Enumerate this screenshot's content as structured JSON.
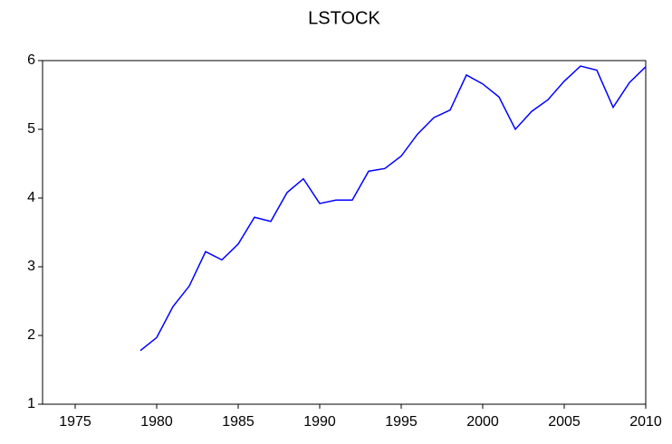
{
  "chart_data": {
    "type": "line",
    "title": "LSTOCK",
    "x": [
      1979,
      1980,
      1981,
      1982,
      1983,
      1984,
      1985,
      1986,
      1987,
      1988,
      1989,
      1990,
      1991,
      1992,
      1993,
      1994,
      1995,
      1996,
      1997,
      1998,
      1999,
      2000,
      2001,
      2002,
      2003,
      2004,
      2005,
      2006,
      2007,
      2008,
      2009,
      2010
    ],
    "values": [
      1.78,
      1.97,
      2.42,
      2.72,
      3.22,
      3.1,
      3.33,
      3.72,
      3.66,
      4.08,
      4.28,
      3.92,
      3.97,
      3.97,
      4.39,
      4.43,
      4.61,
      4.93,
      5.17,
      5.28,
      5.79,
      5.66,
      5.47,
      5.0,
      5.26,
      5.43,
      5.7,
      5.92,
      5.86,
      5.32,
      5.68,
      5.91
    ],
    "color": "#0000ff",
    "xlim": [
      1973,
      2010
    ],
    "xticks": [
      1975,
      1980,
      1985,
      1990,
      1995,
      2000,
      2005,
      2010
    ],
    "ylim": [
      1,
      6
    ],
    "yticks": [
      1,
      2,
      3,
      4,
      5,
      6
    ],
    "grid": false
  }
}
